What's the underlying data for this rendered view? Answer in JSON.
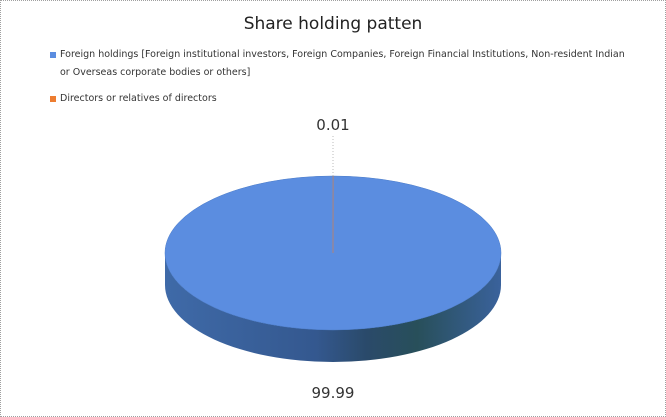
{
  "chart_data": {
    "type": "pie",
    "title": "Share holding patten",
    "legend_position": "top",
    "style": "3d",
    "slices": [
      {
        "label": "Foreign holdings [Foreign institutional investors, Foreign Companies, Foreign Financial Institutions, Non-resident Indian or Overseas corporate bodies or others]",
        "value": 99.99,
        "data_label": "99.99",
        "color": "#5b8de0"
      },
      {
        "label": "Directors or relatives of directors",
        "value": 0.01,
        "data_label": "0.01",
        "color": "#ed7d31"
      }
    ]
  }
}
